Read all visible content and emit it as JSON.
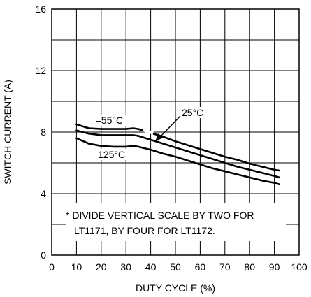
{
  "chart_data": {
    "type": "line",
    "title": "",
    "xlabel": "DUTY CYCLE (%)",
    "ylabel": "SWITCH CURRENT (A)",
    "xlim": [
      0,
      100
    ],
    "ylim": [
      0,
      16
    ],
    "xticks": [
      0,
      10,
      20,
      30,
      40,
      50,
      60,
      70,
      80,
      90,
      100
    ],
    "yticks": [
      0,
      4,
      8,
      12,
      16
    ],
    "grid": true,
    "series": [
      {
        "name": "–55°C",
        "x": [
          10,
          15,
          20,
          25,
          30,
          33,
          35,
          40,
          45,
          50,
          55,
          60,
          65,
          70,
          75,
          80,
          85,
          90,
          92
        ],
        "y": [
          8.5,
          8.25,
          8.2,
          8.2,
          8.2,
          8.25,
          8.2,
          7.95,
          7.7,
          7.4,
          7.15,
          6.9,
          6.65,
          6.4,
          6.2,
          5.95,
          5.75,
          5.55,
          5.5
        ]
      },
      {
        "name": "25°C",
        "x": [
          10,
          15,
          20,
          25,
          30,
          33,
          35,
          40,
          45,
          50,
          55,
          60,
          65,
          70,
          75,
          80,
          85,
          90,
          92
        ],
        "y": [
          8.1,
          7.9,
          7.8,
          7.8,
          7.8,
          7.8,
          7.75,
          7.5,
          7.25,
          7.0,
          6.75,
          6.5,
          6.25,
          6.0,
          5.75,
          5.55,
          5.35,
          5.15,
          5.05
        ]
      },
      {
        "name": "125°C",
        "x": [
          10,
          15,
          20,
          25,
          30,
          33,
          35,
          40,
          45,
          50,
          55,
          60,
          65,
          70,
          75,
          80,
          85,
          90,
          92
        ],
        "y": [
          7.6,
          7.25,
          7.1,
          7.05,
          7.05,
          7.1,
          7.05,
          6.85,
          6.6,
          6.4,
          6.15,
          5.9,
          5.65,
          5.45,
          5.25,
          5.05,
          4.85,
          4.7,
          4.6
        ]
      }
    ],
    "annotations": {
      "line1": "* DIVIDE VERTICAL SCALE BY TWO FOR",
      "line2": "LT1171, BY FOUR FOR LT1172."
    }
  }
}
